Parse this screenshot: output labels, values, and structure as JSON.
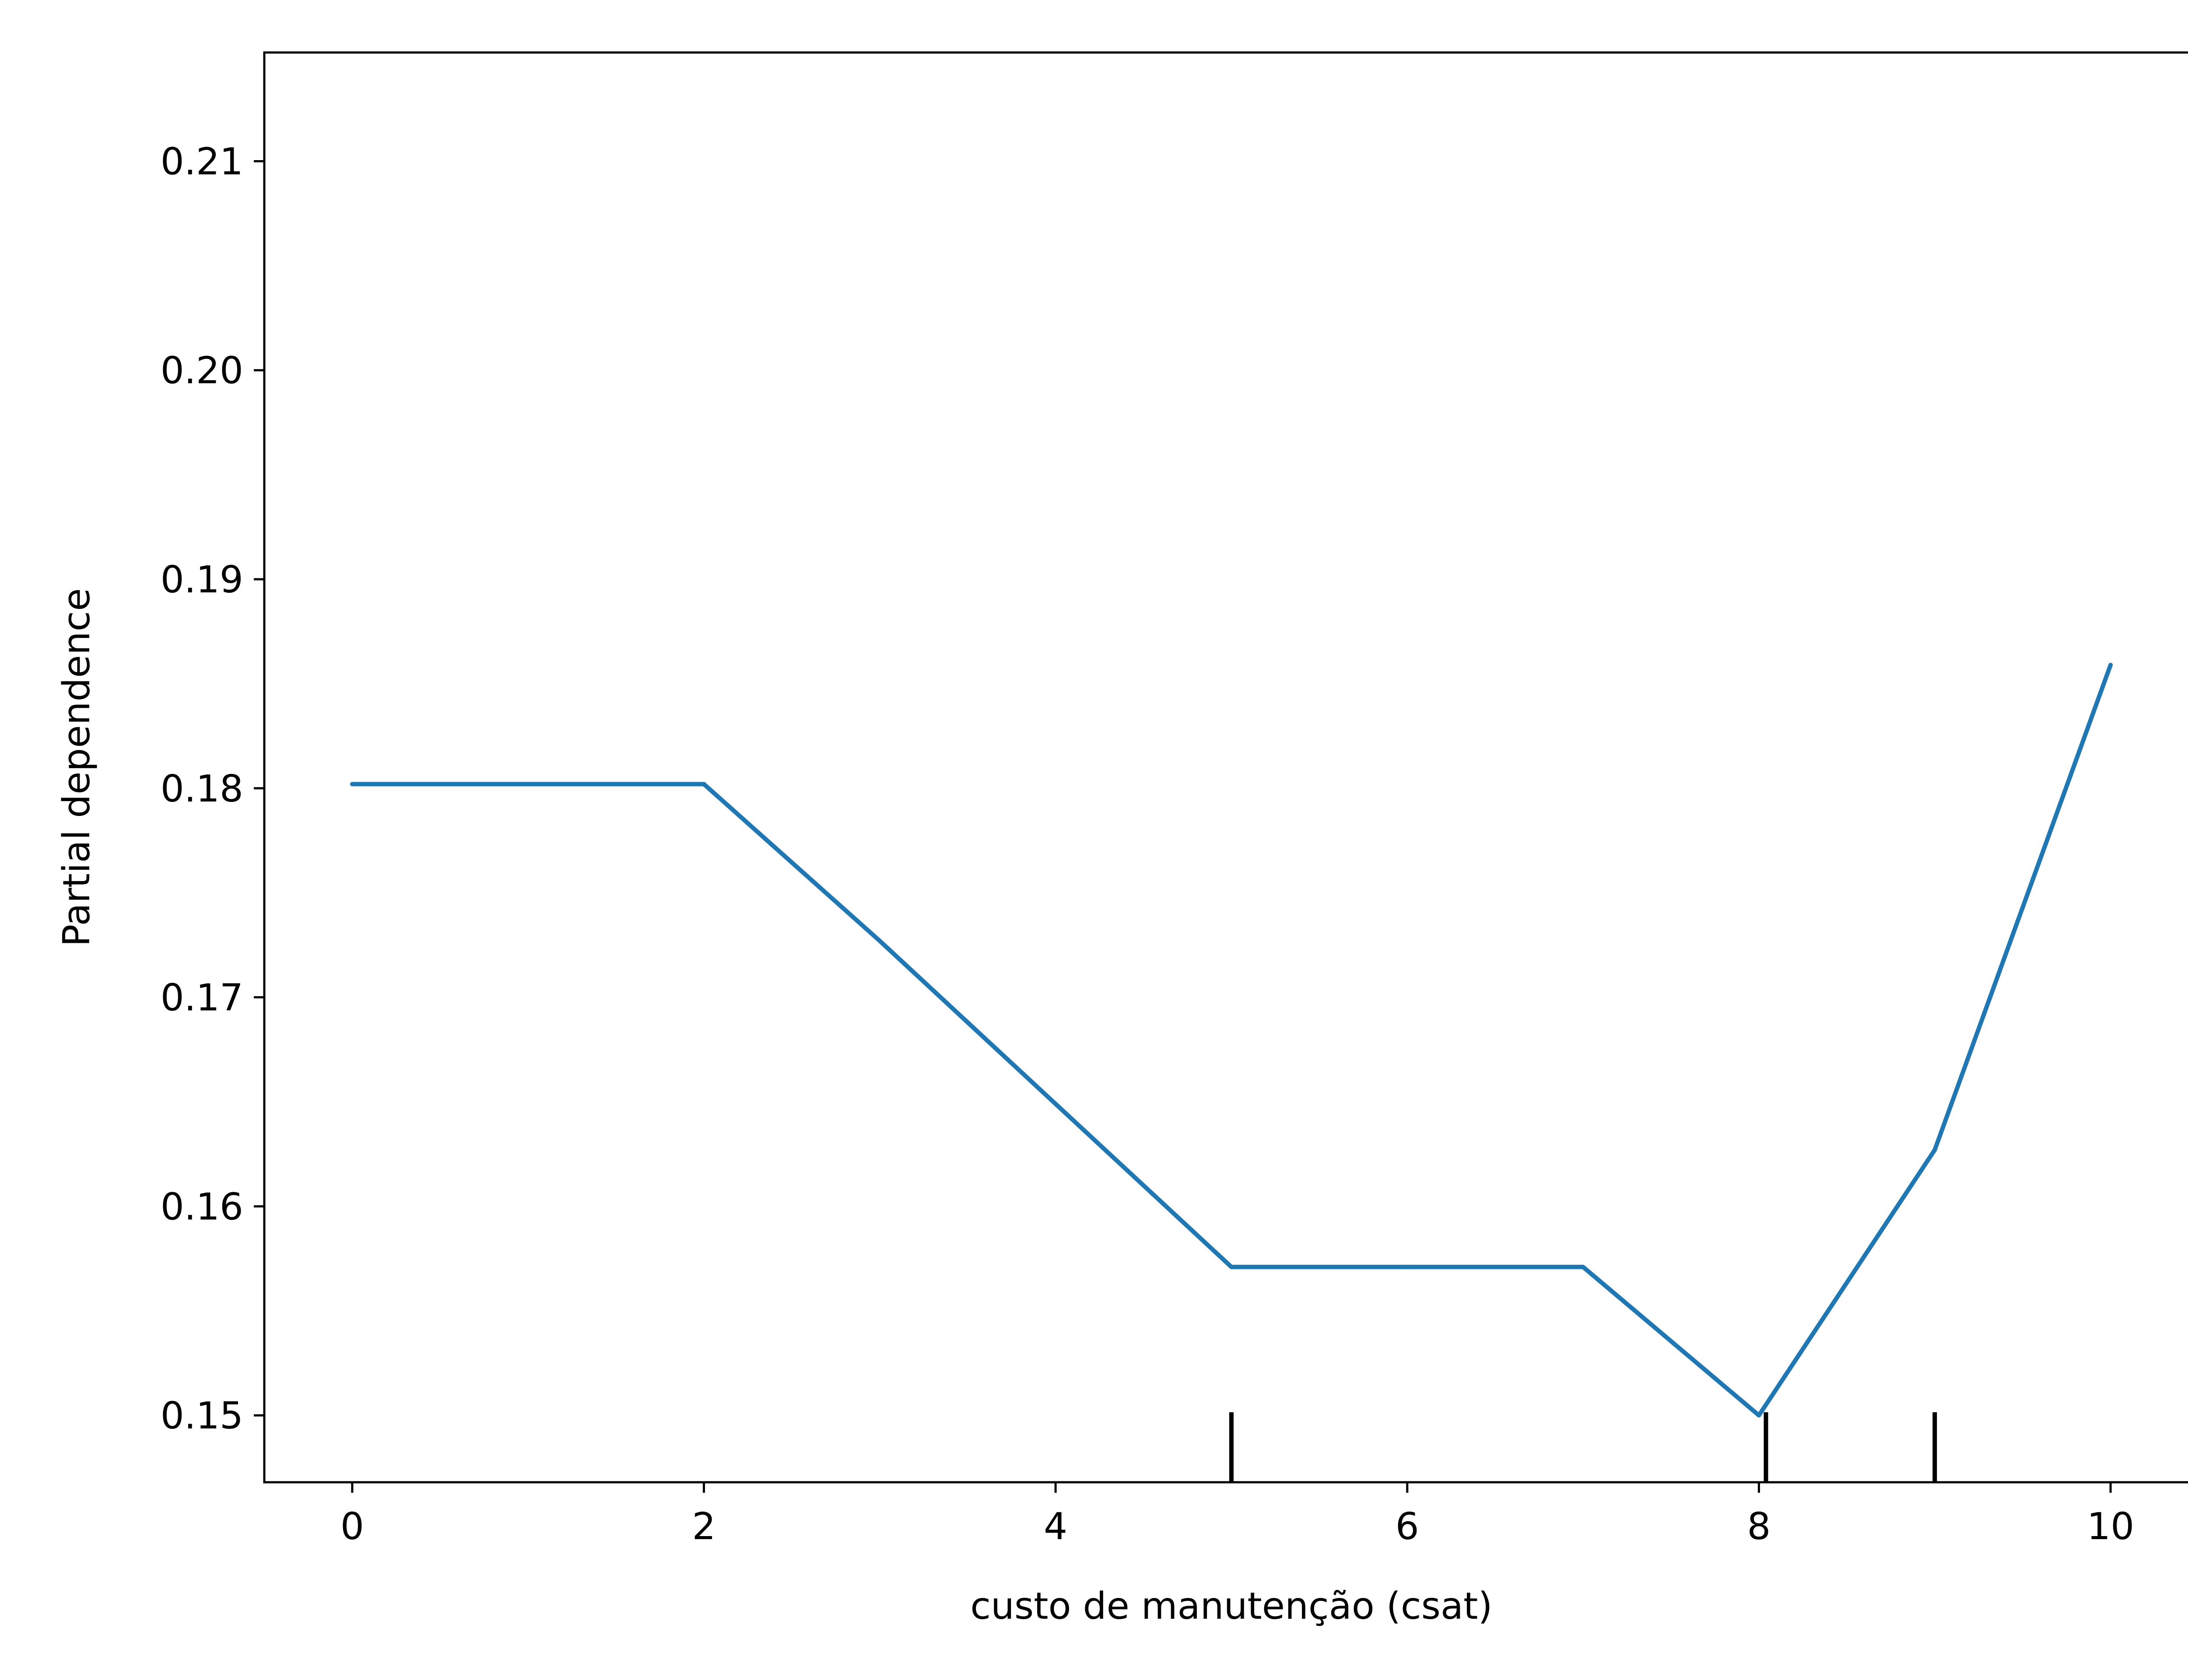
{
  "chart_data": {
    "type": "line",
    "title": "",
    "xlabel": "custo de manutenção (csat)",
    "ylabel": "Partial dependence",
    "xlim": [
      -0.5,
      10.5
    ],
    "ylim": [
      0.1468,
      0.2152
    ],
    "xticks": [
      0,
      2,
      4,
      6,
      8,
      10
    ],
    "xtick_labels": [
      "0",
      "2",
      "4",
      "6",
      "8",
      "10"
    ],
    "yticks": [
      0.15,
      0.16,
      0.17,
      0.18,
      0.19,
      0.2,
      0.21
    ],
    "ytick_labels": [
      "0.15",
      "0.16",
      "0.17",
      "0.18",
      "0.19",
      "0.20",
      "0.21"
    ],
    "grid": false,
    "series": [
      {
        "x": [
          0,
          1,
          2,
          3,
          4,
          5,
          6,
          7,
          8,
          9,
          10
        ],
        "y": [
          0.1802,
          0.1802,
          0.1802,
          0.1727,
          0.1649,
          0.1571,
          0.1571,
          0.1571,
          0.15,
          0.1627,
          0.1859
        ],
        "color": "#1f77b4"
      }
    ],
    "deciles": [
      5,
      8.04,
      9
    ]
  }
}
